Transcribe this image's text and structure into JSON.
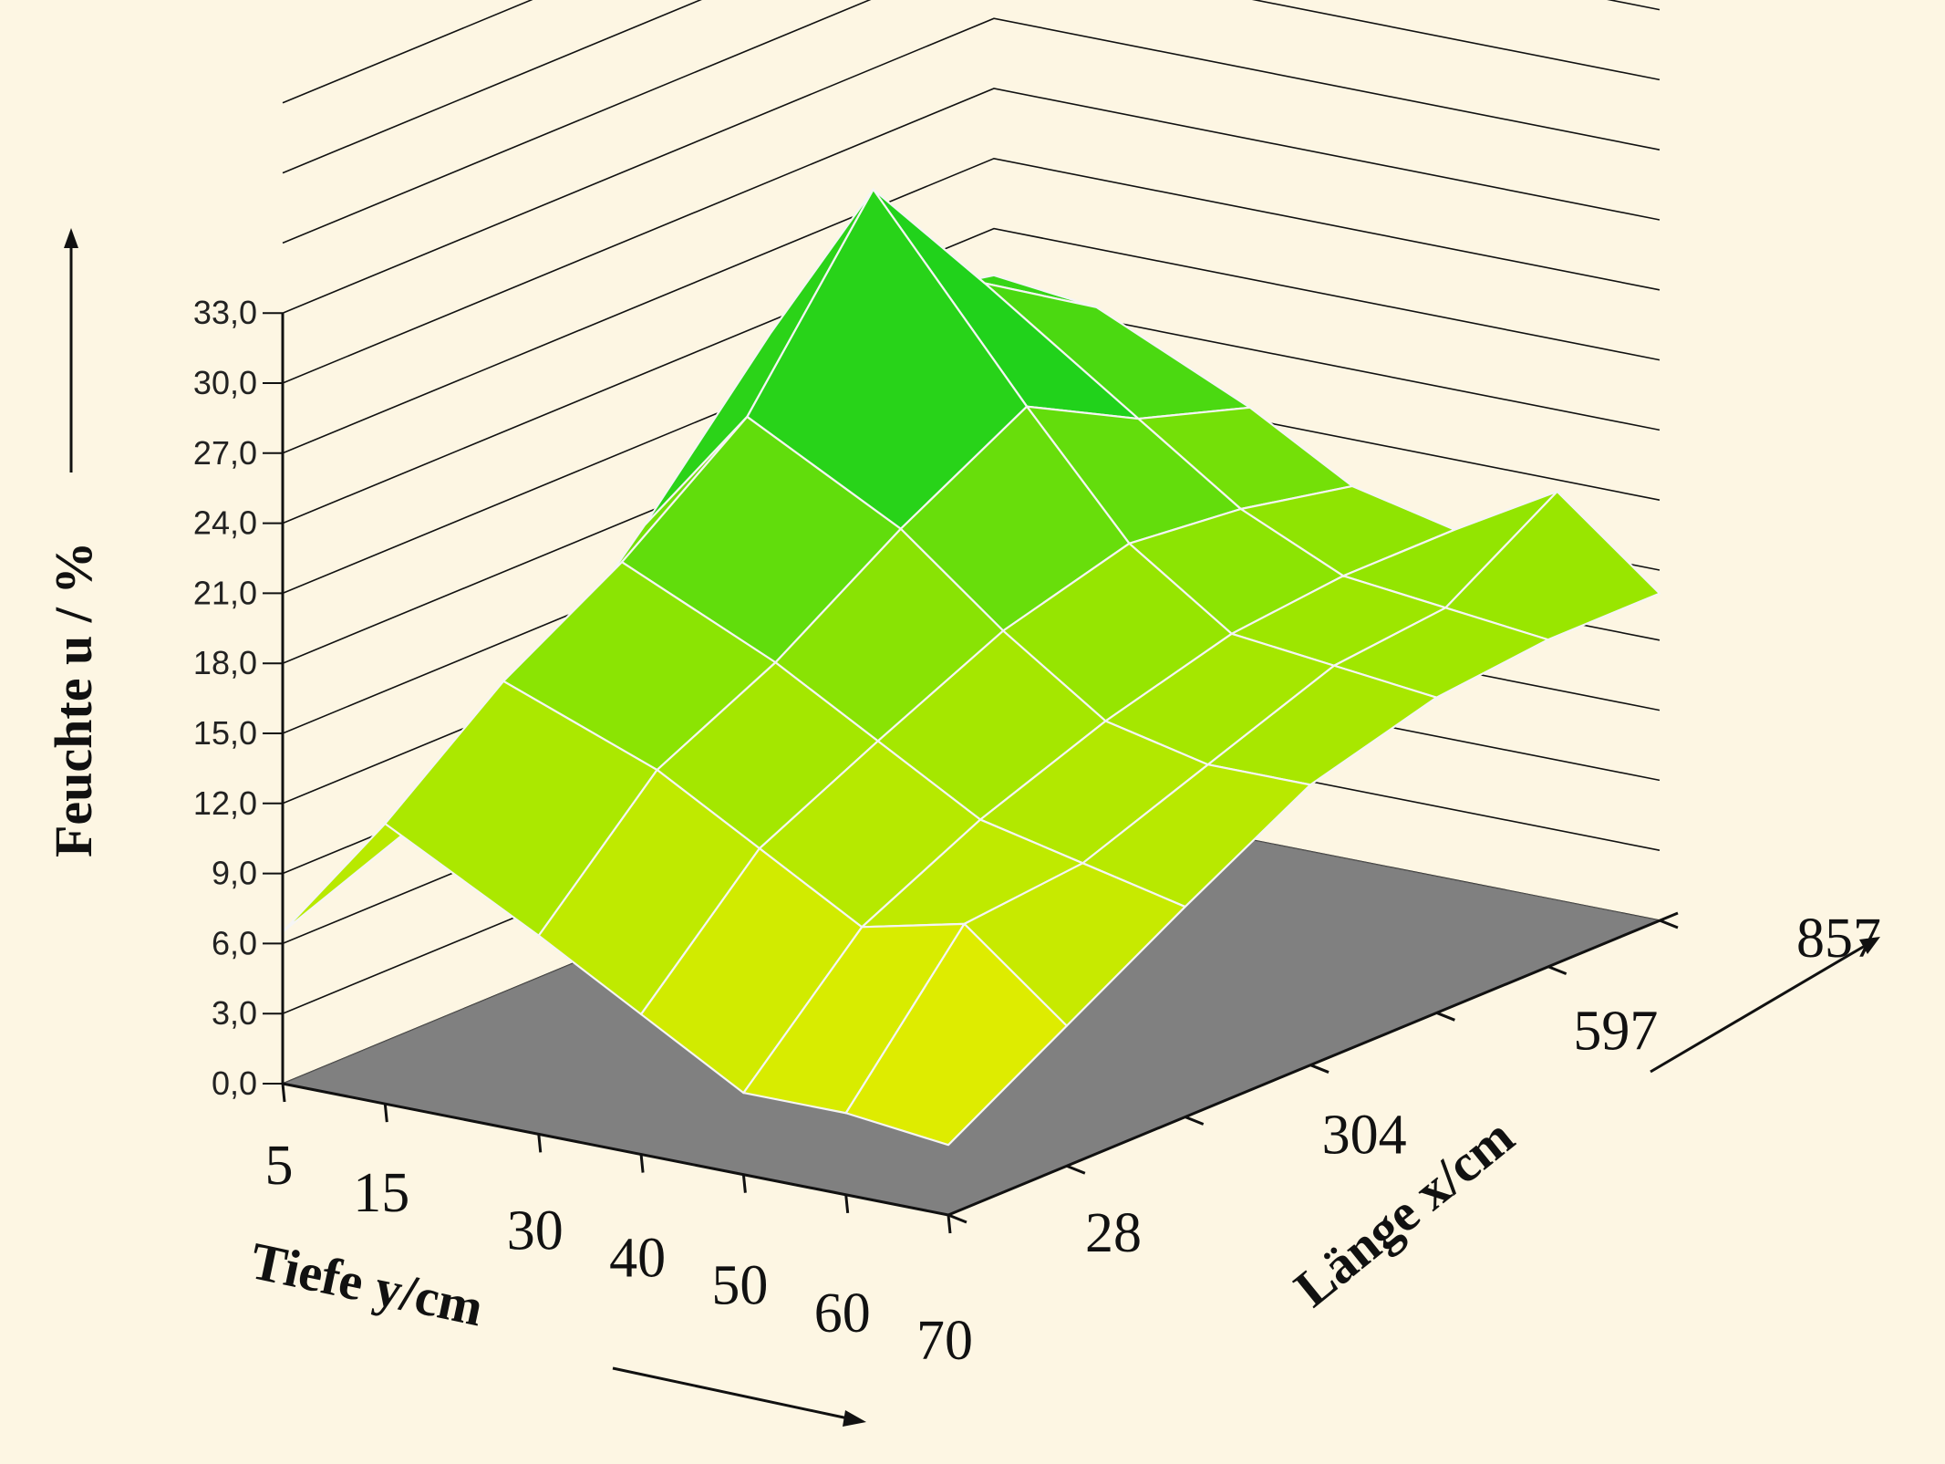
{
  "chart_data": {
    "type": "surface",
    "title": "",
    "zlabel": "Feuchte u / %",
    "ylabel": "Tiefe y/cm",
    "xlabel": "Länge x/cm",
    "z_ticks": [
      "0,0",
      "3,0",
      "6,0",
      "9,0",
      "12,0",
      "15,0",
      "18,0",
      "21,0",
      "24,0",
      "27,0",
      "30,0",
      "33,0"
    ],
    "zlim": [
      0,
      33
    ],
    "depth_ticks": [
      "5",
      "15",
      "30",
      "40",
      "50",
      "60",
      "70"
    ],
    "length_ticks": [
      "28",
      "304",
      "597",
      "857"
    ],
    "depth_values": [
      5,
      15,
      30,
      40,
      50,
      60,
      70
    ],
    "length_values": [
      28,
      166,
      304,
      450,
      597,
      727,
      857
    ],
    "surface_z": [
      [
        6.5,
        8.5,
        12.0,
        17.5,
        23.5,
        23.0,
        22.0
      ],
      [
        12.0,
        16.0,
        19.0,
        23.0,
        30.5,
        24.5,
        21.5
      ],
      [
        8.5,
        13.5,
        16.0,
        19.5,
        22.5,
        20.0,
        18.5
      ],
      [
        6.0,
        11.0,
        13.5,
        16.0,
        17.5,
        17.0,
        16.0
      ],
      [
        3.5,
        8.5,
        11.0,
        13.0,
        14.5,
        15.0,
        15.0
      ],
      [
        3.5,
        9.5,
        10.0,
        12.0,
        14.0,
        14.5,
        17.5
      ],
      [
        3.0,
        6.0,
        9.0,
        12.0,
        13.5,
        14.0,
        14.0
      ]
    ],
    "grid": true,
    "colors": {
      "background": "#fdf6e3",
      "floor": "#808080",
      "low": "#f0ee00",
      "mid": "#99e600",
      "high": "#00cc22",
      "mesh": "#f5f5f5",
      "axis": "#222222"
    }
  }
}
